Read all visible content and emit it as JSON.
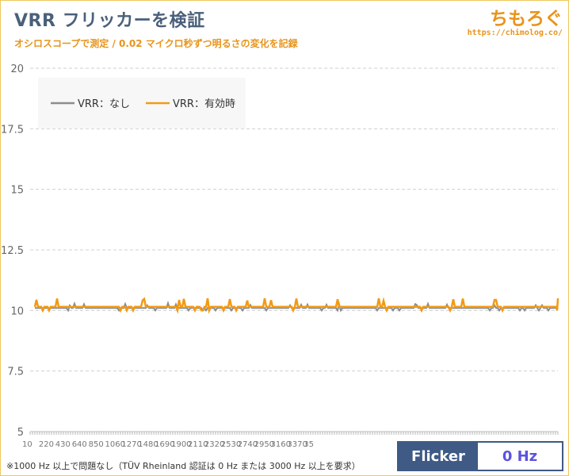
{
  "header": {
    "title": "VRR フリッカーを検証",
    "subtitle": "オシロスコープで測定 / 0.02 マイクロ秒ずつ明るさの変化を記録",
    "brand": "ちもろぐ",
    "brand_url": "https://chimolog.co/"
  },
  "footer": {
    "footnote": "※1000 Hz 以上で問題なし（TÜV Rheinland 認証は 0 Hz または 3000 Hz 以上を要求）",
    "flicker_label": "Flicker",
    "flicker_value": "0 Hz"
  },
  "colors": {
    "series_none": "#8c8c8c",
    "series_vrr": "#f39a12",
    "title": "#4a607a",
    "accent": "#e8941a",
    "badge": "#3f5a85"
  },
  "chart_data": {
    "type": "line",
    "title": "",
    "xlabel": "",
    "ylabel": "",
    "ylim": [
      5,
      20
    ],
    "yticks": [
      "5",
      "7.5",
      "10",
      "12.5",
      "15",
      "17.5",
      "20"
    ],
    "xtick_labels": [
      "10",
      "220",
      "430",
      "640",
      "850",
      "1060",
      "1270",
      "1480",
      "1690",
      "1900",
      "2110",
      "2320",
      "2530",
      "2740",
      "2950",
      "3160",
      "3370",
      "35"
    ],
    "grid": true,
    "legend_position": "top-left",
    "series": [
      {
        "name": "VRR：なし",
        "baseline": 10.1,
        "approx_range": [
          10.0,
          10.3
        ]
      },
      {
        "name": "VRR：有効時",
        "baseline": 10.15,
        "approx_range": [
          10.0,
          10.5
        ]
      }
    ]
  }
}
